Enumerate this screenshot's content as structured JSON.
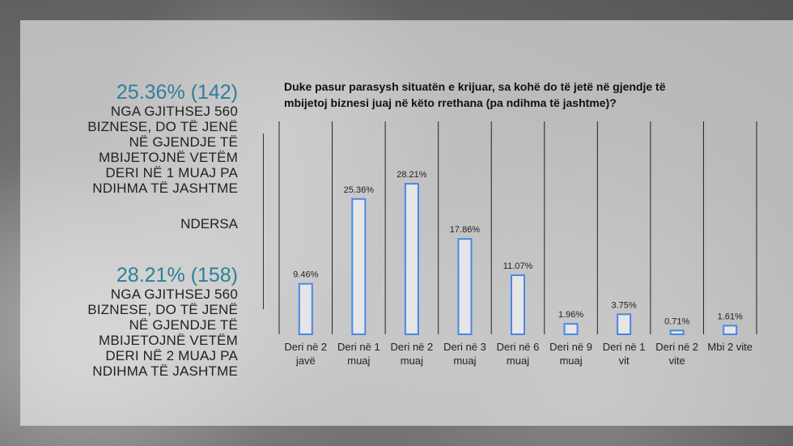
{
  "left_panel": {
    "stat1_value": "25.36% (142)",
    "stat1_text": "NGA GJITHSEJ 560 BIZNESE, DO TË JENË NË GJENDJE TË MBIJETOJNË VETËM DERI NË 1 MUAJ PA NDIHMA TË JASHTME",
    "connector": "NDERSA",
    "stat2_value": "28.21% (158)",
    "stat2_text": "NGA GJITHSEJ 560 BIZNESE, DO TË JENË NË GJENDJE TË MBIJETOJNË VETËM DERI NË 2 MUAJ PA NDIHMA TË JASHTME"
  },
  "colors": {
    "accent": "#2e7f9a",
    "bar_stroke": "#4a86e8",
    "bar_fill": "#e6e6e6"
  },
  "chart_data": {
    "type": "bar",
    "title": "Duke pasur parasysh situatën e krijuar, sa kohë do të jetë në gjendje të mbijetoj biznesi juaj në këto rrethana (pa ndihma të jashtme)?",
    "categories": [
      [
        "Deri në 2",
        "javë"
      ],
      [
        "Deri në 1",
        "muaj"
      ],
      [
        "Deri në 2",
        "muaj"
      ],
      [
        "Deri në 3",
        "muaj"
      ],
      [
        "Deri në 6",
        "muaj"
      ],
      [
        "Deri në 9",
        "muaj"
      ],
      [
        "Deri në 1",
        "vit"
      ],
      [
        "Deri në 2",
        "vite"
      ],
      [
        "Mbi 2 vite",
        ""
      ]
    ],
    "values": [
      9.46,
      25.36,
      28.21,
      17.86,
      11.07,
      1.96,
      3.75,
      0.71,
      1.61
    ],
    "value_labels": [
      "9.46%",
      "25.36%",
      "28.21%",
      "17.86%",
      "11.07%",
      "1.96%",
      "3.75%",
      "0.71%",
      "1.61%"
    ],
    "ylim": [
      0,
      28.21
    ],
    "grid": "vertical separators"
  }
}
